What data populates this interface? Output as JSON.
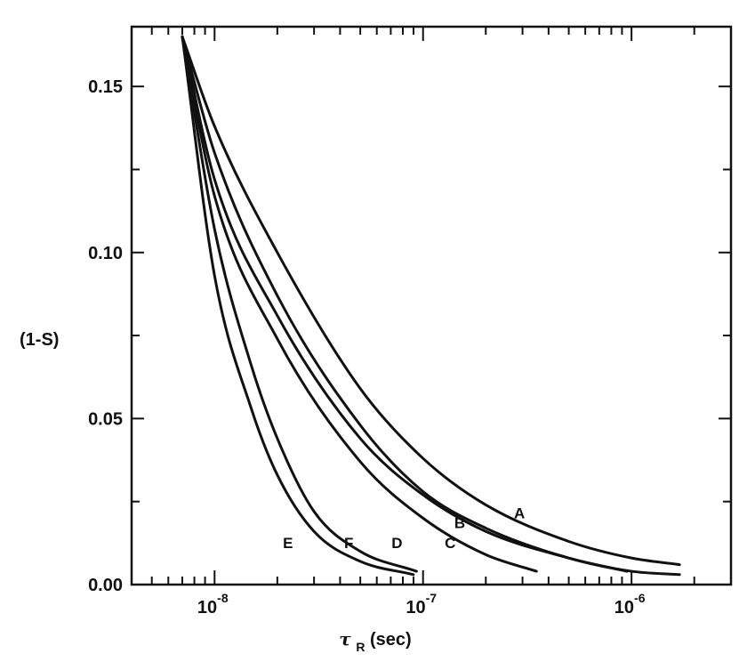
{
  "chart_data": {
    "type": "line",
    "title": "",
    "ylabel": "(1-S)",
    "xlabel": "τ_R(sec)",
    "xlabel_main": "τ",
    "xlabel_sub": "R",
    "xlabel_unit": "(sec)",
    "xscale": "log",
    "xlim": [
      4e-09,
      3e-06
    ],
    "ylim": [
      0.0,
      0.168
    ],
    "x_ticks": [
      {
        "value": 1e-08,
        "base": "10",
        "exp": "-8"
      },
      {
        "value": 1e-07,
        "base": "10",
        "exp": "-7"
      },
      {
        "value": 1e-06,
        "base": "10",
        "exp": "-6"
      }
    ],
    "y_ticks": [
      {
        "value": 0.0,
        "label": "0.00"
      },
      {
        "value": 0.05,
        "label": "0.05"
      },
      {
        "value": 0.1,
        "label": "0.10"
      },
      {
        "value": 0.15,
        "label": "0.15"
      }
    ],
    "grid": false,
    "series": [
      {
        "name": "A",
        "label_at": [
          2.9e-07,
          0.02
        ],
        "x": [
          7e-09,
          1e-08,
          2e-08,
          5e-08,
          1e-07,
          2e-07,
          5e-07,
          1e-06,
          1.7e-06
        ],
        "y": [
          0.165,
          0.138,
          0.1,
          0.059,
          0.038,
          0.024,
          0.013,
          0.008,
          0.006
        ]
      },
      {
        "name": "B",
        "label_at": [
          1.5e-07,
          0.017
        ],
        "x": [
          7e-09,
          1e-08,
          2e-08,
          5e-08,
          1e-07,
          2e-07,
          5e-07,
          1e-06,
          1.7e-06
        ],
        "y": [
          0.165,
          0.13,
          0.087,
          0.048,
          0.028,
          0.017,
          0.008,
          0.004,
          0.003
        ]
      },
      {
        "name": "C",
        "label_at": [
          1.35e-07,
          0.011
        ],
        "x": [
          7e-09,
          1e-08,
          2e-08,
          5e-08,
          1e-07,
          2e-07,
          5e-07,
          9.5e-07
        ],
        "y": [
          0.165,
          0.122,
          0.081,
          0.044,
          0.027,
          0.016,
          0.008,
          0.004
        ]
      },
      {
        "name": "D",
        "label_at": [
          7.5e-08,
          0.011
        ],
        "x": [
          7e-09,
          1e-08,
          2e-08,
          5e-08,
          1e-07,
          2e-07,
          3.5e-07
        ],
        "y": [
          0.165,
          0.117,
          0.074,
          0.037,
          0.02,
          0.009,
          0.004
        ]
      },
      {
        "name": "F",
        "label_at": [
          4.4e-08,
          0.011
        ],
        "x": [
          7e-09,
          1e-08,
          1.5e-08,
          2e-08,
          3e-08,
          5e-08,
          9.3e-08
        ],
        "y": [
          0.165,
          0.107,
          0.066,
          0.044,
          0.022,
          0.01,
          0.004
        ]
      },
      {
        "name": "E",
        "label_at": [
          2.25e-08,
          0.011
        ],
        "x": [
          7e-09,
          1e-08,
          1.5e-08,
          2e-08,
          3e-08,
          5e-08,
          9e-08
        ],
        "y": [
          0.165,
          0.093,
          0.053,
          0.033,
          0.016,
          0.007,
          0.003
        ]
      }
    ]
  }
}
